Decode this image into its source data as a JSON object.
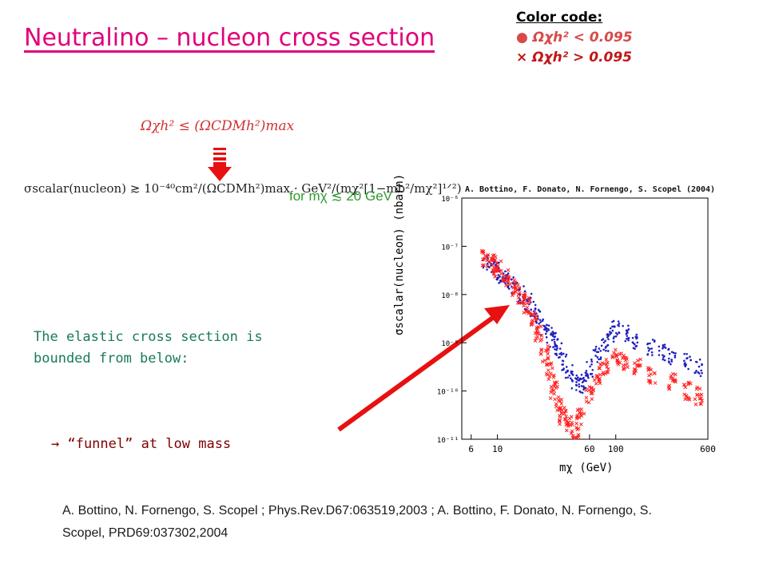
{
  "title": "Neutralino – nucleon cross section",
  "legend": {
    "title": "Color code:",
    "items": [
      {
        "marker": "●",
        "label": "Ωχh² < 0.095",
        "color": "#d84a4a"
      },
      {
        "marker": "×",
        "label": "Ωχh² > 0.095",
        "color": "#c01818"
      }
    ]
  },
  "equations": {
    "bound": "Ωχh² ≤ (ΩCDMh²)max",
    "cross_section": "σscalar(nucleon) ≳ 10⁻⁴⁰cm²/(ΩCDMh²)max · GeV²/(mχ²[1−mb²/mχ²]¹ᐟ²)",
    "condition": "for mχ ≲ 20 GeV"
  },
  "text": {
    "bounded": "The elastic cross section is bounded from below:",
    "funnel": "→ “funnel” at low mass",
    "citation": "A. Bottino, N. Fornengo, S. Scopel ; Phys.Rev.D67:063519,2003 ; A. Bottino, F. Donato, N. Fornengo, S. Scopel, PRD69:037302,2004"
  },
  "colors": {
    "title": "#e0007a",
    "arrow": "#e81010",
    "series_blue": "#2020c0",
    "series_red": "#ff2020"
  },
  "chart_data": {
    "type": "scatter",
    "title": "A. Bottino, F. Donato, N. Fornengo, S. Scopel (2004)",
    "xlabel": "mχ (GeV)",
    "ylabel": "σscalar(nucleon) (nbarn)",
    "xscale": "log",
    "yscale": "log",
    "xlim": [
      5,
      600
    ],
    "ylim": [
      1e-11,
      1e-06
    ],
    "x_ticks": [
      "6",
      "10",
      "60",
      "100",
      "600"
    ],
    "x_tick_values": [
      6,
      10,
      60,
      100,
      600
    ],
    "y_ticks": [
      "10⁻¹¹",
      "10⁻¹⁰",
      "10⁻⁹",
      "10⁻⁸",
      "10⁻⁷",
      "10⁻⁶"
    ],
    "y_tick_values": [
      1e-11,
      1e-10,
      1e-09,
      1e-08,
      1e-07,
      1e-06
    ],
    "series": [
      {
        "name": "Ωχh² < 0.095",
        "marker": "dot",
        "color": "#2020c0",
        "points": [
          [
            8,
            5e-08
          ],
          [
            9,
            4e-08
          ],
          [
            10,
            3e-08
          ],
          [
            11,
            2.5e-08
          ],
          [
            12,
            2e-08
          ],
          [
            14,
            1.5e-08
          ],
          [
            16,
            1e-08
          ],
          [
            18,
            7e-09
          ],
          [
            20,
            5e-09
          ],
          [
            22,
            3.5e-09
          ],
          [
            25,
            2.2e-09
          ],
          [
            28,
            1.5e-09
          ],
          [
            30,
            1.1e-09
          ],
          [
            33,
            7e-10
          ],
          [
            36,
            4e-10
          ],
          [
            40,
            2.5e-10
          ],
          [
            45,
            1.5e-10
          ],
          [
            50,
            1.2e-10
          ],
          [
            55,
            1.6e-10
          ],
          [
            60,
            3e-10
          ],
          [
            70,
            6e-10
          ],
          [
            80,
            1e-09
          ],
          [
            90,
            1.5e-09
          ],
          [
            100,
            2e-09
          ],
          [
            120,
            1.5e-09
          ],
          [
            150,
            1e-09
          ],
          [
            200,
            8e-10
          ],
          [
            250,
            6e-10
          ],
          [
            300,
            5e-10
          ],
          [
            400,
            4e-10
          ],
          [
            500,
            3e-10
          ]
        ]
      },
      {
        "marker": "x",
        "color": "#ff2020",
        "points": [
          [
            8,
            5.5e-08
          ],
          [
            9,
            4.5e-08
          ],
          [
            10,
            3.5e-08
          ],
          [
            12,
            2.2e-08
          ],
          [
            14,
            1.4e-08
          ],
          [
            16,
            9e-09
          ],
          [
            18,
            6e-09
          ],
          [
            20,
            3e-09
          ],
          [
            22,
            1.5e-09
          ],
          [
            25,
            6e-10
          ],
          [
            28,
            2.5e-10
          ],
          [
            30,
            1e-10
          ],
          [
            33,
            5e-11
          ],
          [
            36,
            3e-11
          ],
          [
            40,
            2e-11
          ],
          [
            45,
            1.5e-11
          ],
          [
            50,
            3e-11
          ],
          [
            60,
            8e-11
          ],
          [
            70,
            2e-10
          ],
          [
            80,
            3e-10
          ],
          [
            100,
            5e-10
          ],
          [
            120,
            4e-10
          ],
          [
            150,
            3e-10
          ],
          [
            200,
            2e-10
          ],
          [
            300,
            1.5e-10
          ],
          [
            400,
            1e-10
          ],
          [
            500,
            8e-11
          ]
        ]
      }
    ]
  }
}
